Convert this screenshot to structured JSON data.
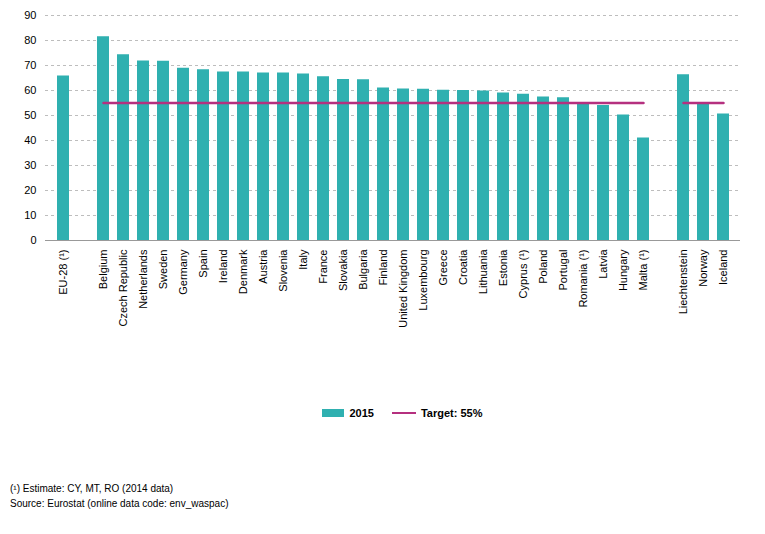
{
  "chart_data": {
    "type": "bar",
    "categories": [
      "EU-28 (¹)",
      null,
      "Belgium",
      "Czech Republic",
      "Netherlands",
      "Sweden",
      "Germany",
      "Spain",
      "Ireland",
      "Denmark",
      "Austria",
      "Slovenia",
      "Italy",
      "France",
      "Slovakia",
      "Bulgaria",
      "Finland",
      "United Kingdom",
      "Luxembourg",
      "Greece",
      "Croatia",
      "Lithuania",
      "Estonia",
      "Cyprus (¹)",
      "Poland",
      "Portugal",
      "Romania (¹)",
      "Latvia",
      "Hungary",
      "Malta (¹)",
      null,
      "Liechtenstein",
      "Norway",
      "Iceland"
    ],
    "series": [
      {
        "name": "2015",
        "type": "bar",
        "color": "#2fb0b0",
        "values": [
          65.8,
          null,
          81.5,
          74.3,
          71.8,
          71.7,
          68.9,
          68.3,
          67.4,
          67.4,
          67.0,
          67.0,
          66.6,
          65.5,
          64.4,
          64.3,
          61.0,
          60.6,
          60.5,
          60.1,
          60.0,
          59.8,
          59.0,
          58.5,
          57.4,
          57.1,
          55.0,
          54.0,
          50.2,
          41.0,
          null,
          66.3,
          54.8,
          50.6
        ]
      },
      {
        "name": "Target: 55%",
        "type": "line",
        "color": "#b5307f",
        "values": [
          null,
          null,
          55,
          55,
          55,
          55,
          55,
          55,
          55,
          55,
          55,
          55,
          55,
          55,
          55,
          55,
          55,
          55,
          55,
          55,
          55,
          55,
          55,
          55,
          55,
          55,
          55,
          55,
          55,
          55,
          null,
          55,
          55,
          55
        ]
      }
    ],
    "ylim": [
      0,
      90
    ],
    "yticks": [
      0,
      10,
      20,
      30,
      40,
      50,
      60,
      70,
      80,
      90
    ],
    "grid": true,
    "legend": "bottom",
    "footnote": "(¹) Estimate: CY, MT, RO (2014 data)",
    "source": "Source: Eurostat (online data code: env_waspac)"
  }
}
